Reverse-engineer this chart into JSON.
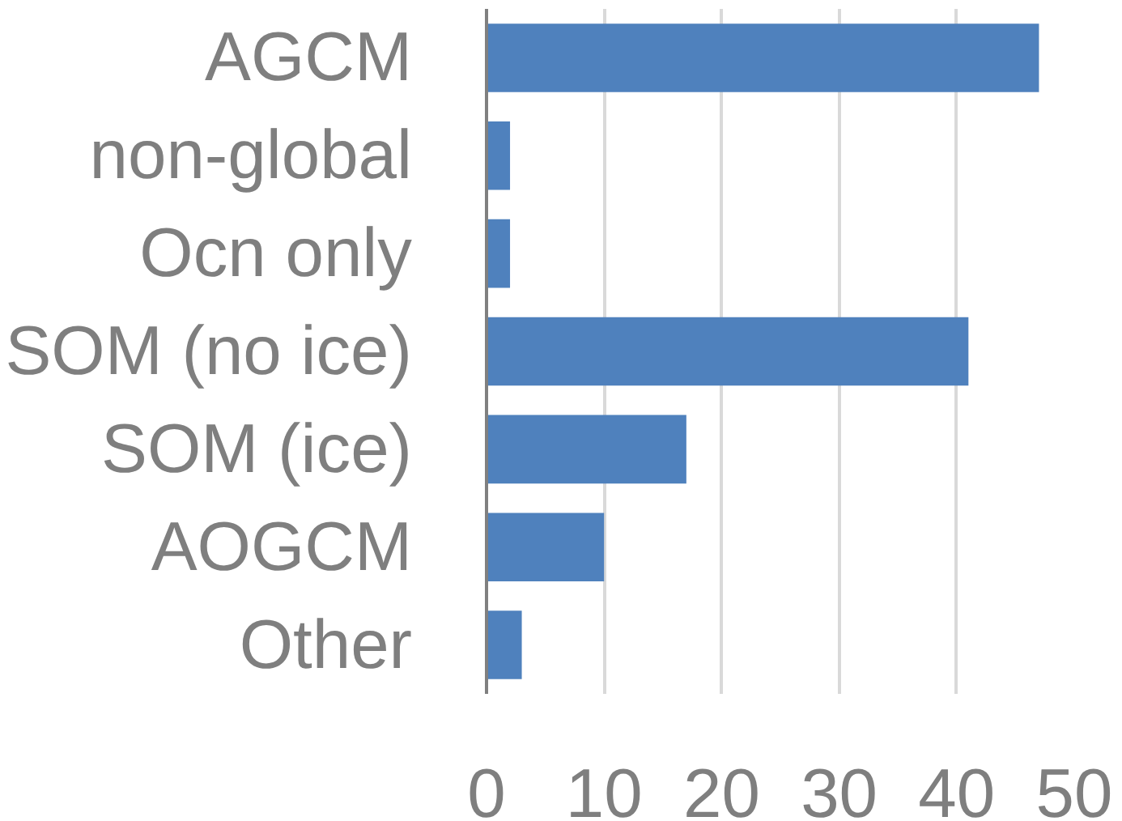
{
  "chart_data": {
    "type": "bar",
    "orientation": "horizontal",
    "categories": [
      "AGCM",
      "non-global",
      "Ocn only",
      "SOM (no ice)",
      "SOM (ice)",
      "AOGCM",
      "Other"
    ],
    "values": [
      47,
      2,
      2,
      41,
      17,
      10,
      3
    ],
    "color": "#4f81bd",
    "xlim": [
      0,
      50
    ],
    "xticks": [
      0,
      10,
      20,
      30,
      40,
      50
    ],
    "grid": "x"
  }
}
